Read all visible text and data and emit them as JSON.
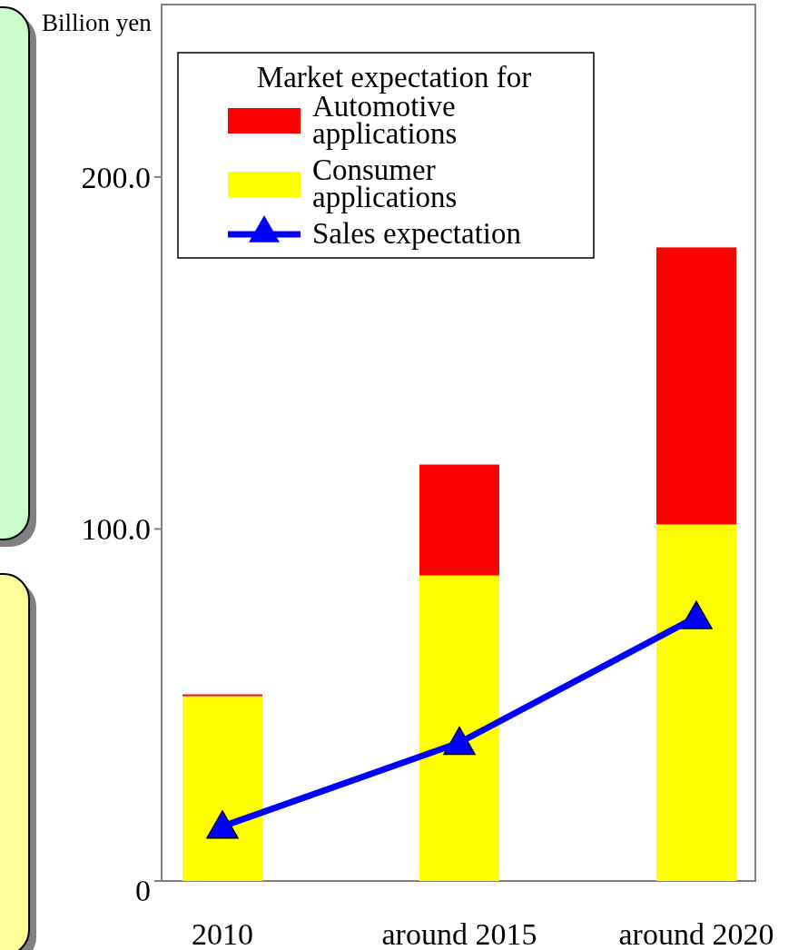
{
  "chart_data": {
    "type": "bar",
    "stacked": true,
    "ylabel": "Billion yen",
    "legend_title": "Market expectation for",
    "legend": "top left",
    "categories": [
      "2010",
      "around 2015",
      "around 2020"
    ],
    "series": [
      {
        "name": "Consumer applications",
        "color": "#ffff00",
        "values": [
          52.5,
          86.8,
          101.3
        ]
      },
      {
        "name": "Automotive applications",
        "color": "#ff0000",
        "values": [
          0.5,
          31.5,
          78.7
        ]
      },
      {
        "name": "Sales expectation",
        "type": "line",
        "color": "#0000ff",
        "marker": "triangle",
        "values": [
          15.5,
          39.3,
          75
        ]
      }
    ],
    "ylim": [
      0,
      249
    ],
    "yticks": [
      0,
      {
        "value": 100,
        "label": "100.0"
      },
      {
        "value": 200,
        "label": "200.0"
      }
    ]
  }
}
